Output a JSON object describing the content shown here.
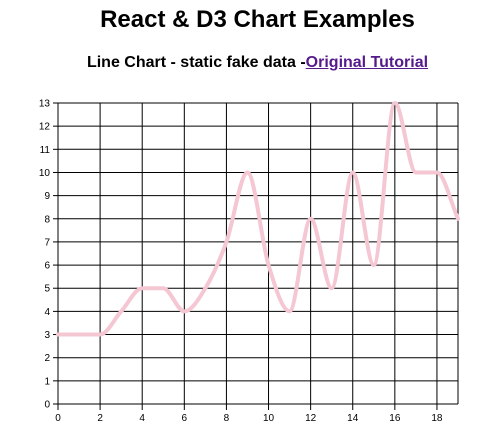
{
  "header": {
    "title": "React & D3 Chart Examples"
  },
  "chart_section": {
    "heading": "Line Chart - static fake data -",
    "link_label": "Original Tutorial"
  },
  "colors": {
    "line": "#f4c7d3",
    "grid": "#000000"
  },
  "chart_data": {
    "type": "line",
    "x": [
      0,
      1,
      2,
      3,
      4,
      5,
      6,
      7,
      8,
      9,
      10,
      11,
      12,
      13,
      14,
      15,
      16,
      17,
      18,
      19
    ],
    "values": [
      3,
      3,
      3,
      4,
      5,
      5,
      4,
      5,
      7,
      10,
      6,
      4,
      8,
      5,
      10,
      6,
      13,
      10,
      10,
      8
    ],
    "xlim": [
      0,
      19
    ],
    "ylim": [
      0,
      13
    ],
    "x_ticks": [
      0,
      2,
      4,
      6,
      8,
      10,
      12,
      14,
      16,
      18
    ],
    "y_ticks": [
      0,
      1,
      2,
      3,
      4,
      5,
      6,
      7,
      8,
      9,
      10,
      11,
      12,
      13
    ],
    "grid": true,
    "curve": "smooth"
  }
}
